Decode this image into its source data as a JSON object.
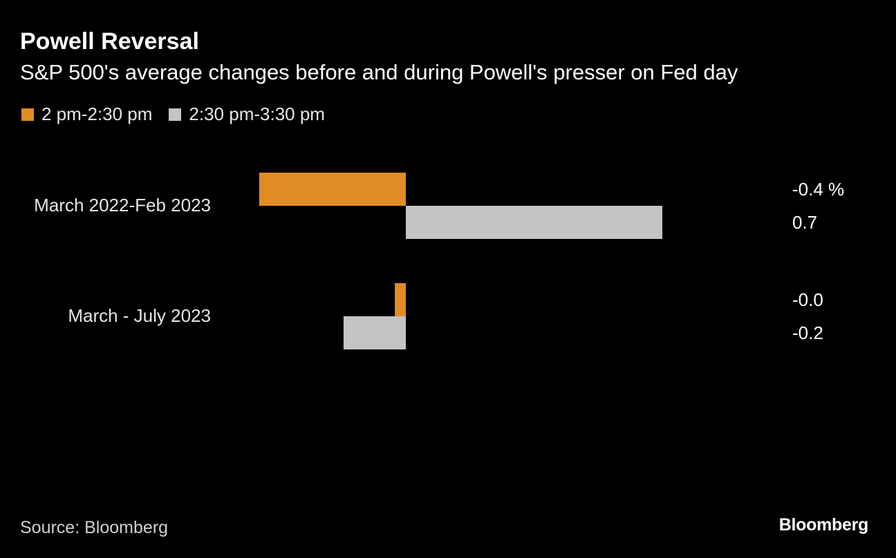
{
  "header": {
    "title": "Powell Reversal",
    "subtitle": "S&P 500's average changes before and during Powell's presser on Fed day"
  },
  "colors": {
    "series_a": "#e08c24",
    "series_b": "#c4c4c4",
    "category_label": "#e6e6e6",
    "value_label": "#ffffff"
  },
  "chart_data": {
    "type": "bar",
    "orientation": "horizontal",
    "categories": [
      "March 2022-Feb 2023",
      "March - July 2023"
    ],
    "series": [
      {
        "name": "2 pm-2:30 pm",
        "values": [
          -0.4,
          -0.03
        ],
        "labels": [
          "-0.4 %",
          "-0.0"
        ]
      },
      {
        "name": "2:30 pm-3:30 pm",
        "values": [
          0.7,
          -0.17
        ],
        "labels": [
          "0.7",
          "-0.2"
        ]
      }
    ],
    "xlim": [
      -0.4,
      0.7
    ],
    "legend_position": "top-left",
    "grid": false
  },
  "footer": {
    "source": "Source: Bloomberg",
    "logo": "Bloomberg"
  }
}
